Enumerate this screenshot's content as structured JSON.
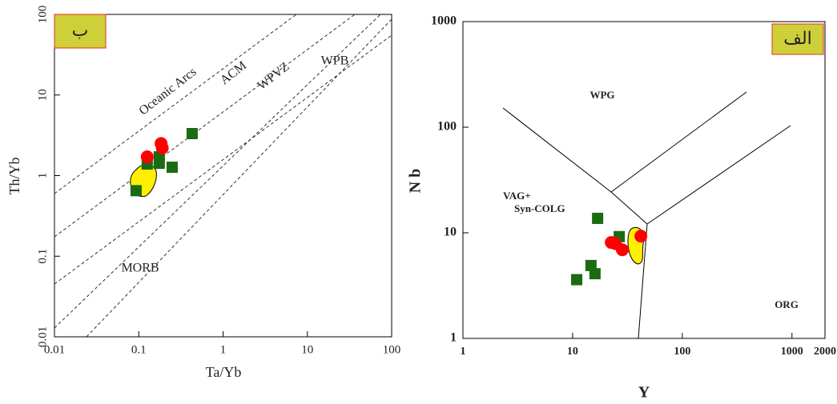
{
  "chart_data": [
    {
      "type": "scatter",
      "label": "ب",
      "xlabel": "Ta/Yb",
      "ylabel": "Th/Yb",
      "xlog": true,
      "ylog": true,
      "xlim": [
        0.01,
        100
      ],
      "ylim": [
        0.01,
        100
      ],
      "xticks": [
        0.01,
        0.1,
        1,
        10,
        100
      ],
      "yticks": [
        0.01,
        0.1,
        1,
        10,
        100
      ],
      "annotations": [
        "Oceanic Arcs",
        "ACM",
        "WPVZ",
        "WPB",
        "MORB"
      ],
      "series": [
        {
          "marker": "square",
          "color": "#1a6b12",
          "x": [
            0.093,
            0.126,
            0.175,
            0.175,
            0.249,
            0.43
          ],
          "values": [
            0.65,
            1.39,
            1.71,
            1.42,
            1.27,
            3.32
          ]
        },
        {
          "marker": "circle",
          "color": "#ff0000",
          "x": [
            0.126,
            0.184,
            0.19
          ],
          "values": [
            1.71,
            2.5,
            2.2
          ]
        }
      ]
    },
    {
      "type": "scatter",
      "label": "الف",
      "xlabel": "Y",
      "ylabel": "N b",
      "xlog": true,
      "ylog": true,
      "xlim": [
        1,
        2000
      ],
      "ylim": [
        1,
        1000
      ],
      "xticks": [
        1,
        10,
        100,
        1000,
        2000
      ],
      "yticks": [
        1,
        10,
        100,
        1000
      ],
      "annotations": [
        "WPG",
        "VAG+",
        "Syn-COLG",
        "ORG"
      ],
      "series": [
        {
          "marker": "square",
          "color": "#1a6b12",
          "x": [
            16.9,
            26.6,
            14.7,
            16.0,
            10.9
          ],
          "values": [
            13.7,
            9.2,
            4.9,
            4.1,
            3.6
          ]
        },
        {
          "marker": "circle",
          "color": "#ff0000",
          "x": [
            22.5,
            24.5,
            28.4,
            41.9
          ],
          "values": [
            8.1,
            7.9,
            6.9,
            9.3
          ]
        }
      ]
    }
  ]
}
